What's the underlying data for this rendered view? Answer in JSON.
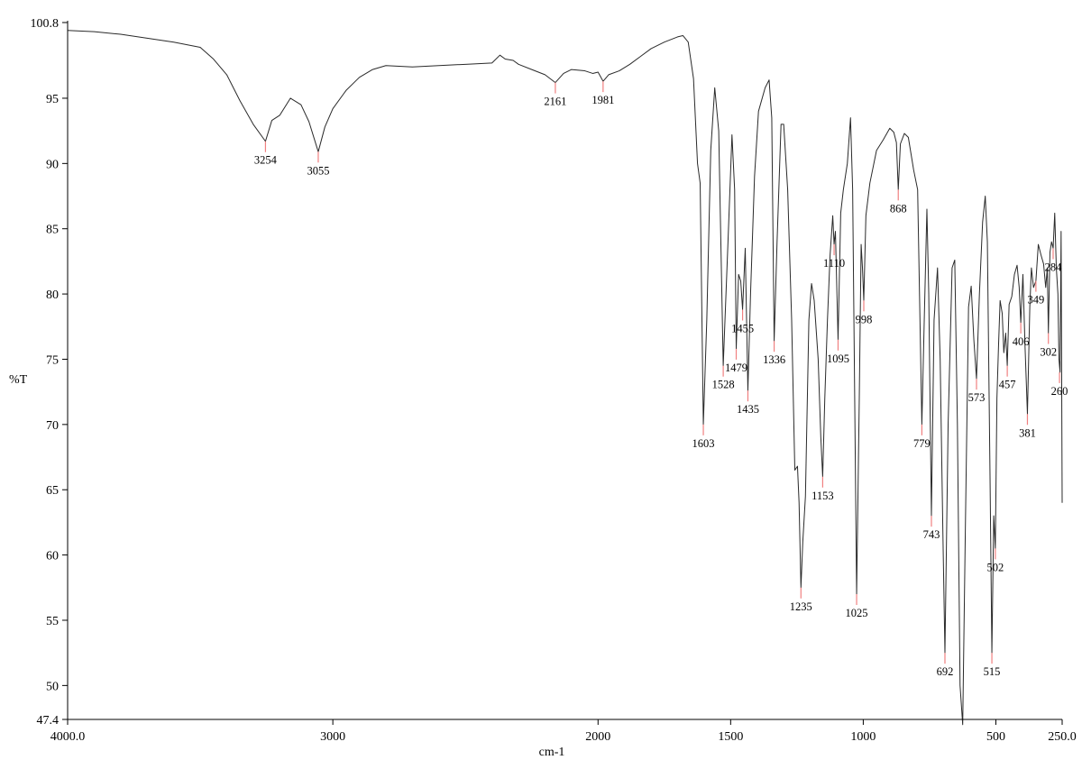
{
  "chart_data": {
    "type": "line",
    "title": "",
    "xlabel": "cm-1",
    "ylabel": "%T",
    "xlim": [
      4000.0,
      250.0
    ],
    "ylim": [
      47.4,
      100.8
    ],
    "x_reversed": true,
    "grid": false,
    "x_ticks": [
      {
        "value": 4000,
        "label": "4000.0"
      },
      {
        "value": 3000,
        "label": "3000"
      },
      {
        "value": 2000,
        "label": "2000"
      },
      {
        "value": 1500,
        "label": "1500"
      },
      {
        "value": 1000,
        "label": "1000"
      },
      {
        "value": 500,
        "label": "500"
      },
      {
        "value": 250,
        "label": "250.0"
      }
    ],
    "y_ticks": [
      {
        "value": 100.8,
        "label": "100.8"
      },
      {
        "value": 95,
        "label": "95"
      },
      {
        "value": 90,
        "label": "90"
      },
      {
        "value": 85,
        "label": "85"
      },
      {
        "value": 80,
        "label": "80"
      },
      {
        "value": 75,
        "label": "75"
      },
      {
        "value": 70,
        "label": "70"
      },
      {
        "value": 65,
        "label": "65"
      },
      {
        "value": 60,
        "label": "60"
      },
      {
        "value": 55,
        "label": "55"
      },
      {
        "value": 50,
        "label": "50"
      },
      {
        "value": 47.4,
        "label": "47.4"
      }
    ],
    "series": [
      {
        "color": "#2a2a2a",
        "points": [
          [
            4000,
            100.2
          ],
          [
            3900,
            100.1
          ],
          [
            3800,
            99.9
          ],
          [
            3700,
            99.6
          ],
          [
            3600,
            99.3
          ],
          [
            3500,
            98.9
          ],
          [
            3450,
            98.0
          ],
          [
            3400,
            96.8
          ],
          [
            3350,
            94.8
          ],
          [
            3300,
            93.0
          ],
          [
            3254,
            91.7
          ],
          [
            3230,
            93.3
          ],
          [
            3200,
            93.7
          ],
          [
            3160,
            95.0
          ],
          [
            3120,
            94.5
          ],
          [
            3090,
            93.2
          ],
          [
            3055,
            90.9
          ],
          [
            3030,
            92.8
          ],
          [
            3000,
            94.2
          ],
          [
            2950,
            95.6
          ],
          [
            2900,
            96.6
          ],
          [
            2850,
            97.2
          ],
          [
            2800,
            97.5
          ],
          [
            2700,
            97.4
          ],
          [
            2600,
            97.5
          ],
          [
            2500,
            97.6
          ],
          [
            2400,
            97.7
          ],
          [
            2370,
            98.3
          ],
          [
            2350,
            98.0
          ],
          [
            2320,
            97.9
          ],
          [
            2300,
            97.6
          ],
          [
            2250,
            97.2
          ],
          [
            2200,
            96.8
          ],
          [
            2161,
            96.2
          ],
          [
            2130,
            96.9
          ],
          [
            2100,
            97.2
          ],
          [
            2050,
            97.1
          ],
          [
            2020,
            96.9
          ],
          [
            2000,
            97.0
          ],
          [
            1981,
            96.3
          ],
          [
            1960,
            96.8
          ],
          [
            1920,
            97.1
          ],
          [
            1880,
            97.6
          ],
          [
            1840,
            98.2
          ],
          [
            1800,
            98.8
          ],
          [
            1750,
            99.3
          ],
          [
            1700,
            99.7
          ],
          [
            1680,
            99.8
          ],
          [
            1660,
            99.3
          ],
          [
            1640,
            96.5
          ],
          [
            1625,
            90.0
          ],
          [
            1615,
            88.5
          ],
          [
            1603,
            70.0
          ],
          [
            1590,
            78.0
          ],
          [
            1575,
            91.0
          ],
          [
            1560,
            95.8
          ],
          [
            1545,
            92.5
          ],
          [
            1528,
            74.5
          ],
          [
            1510,
            84.0
          ],
          [
            1495,
            92.2
          ],
          [
            1485,
            88.0
          ],
          [
            1479,
            75.8
          ],
          [
            1470,
            81.5
          ],
          [
            1462,
            81.0
          ],
          [
            1455,
            78.8
          ],
          [
            1445,
            83.5
          ],
          [
            1435,
            72.6
          ],
          [
            1425,
            80.0
          ],
          [
            1410,
            89.0
          ],
          [
            1395,
            94.0
          ],
          [
            1370,
            95.8
          ],
          [
            1355,
            96.4
          ],
          [
            1345,
            93.5
          ],
          [
            1336,
            76.4
          ],
          [
            1325,
            84.0
          ],
          [
            1310,
            93.0
          ],
          [
            1300,
            93.0
          ],
          [
            1285,
            88.0
          ],
          [
            1270,
            78.0
          ],
          [
            1258,
            66.5
          ],
          [
            1248,
            66.8
          ],
          [
            1242,
            64.0
          ],
          [
            1235,
            57.5
          ],
          [
            1228,
            61.0
          ],
          [
            1218,
            64.5
          ],
          [
            1205,
            78.0
          ],
          [
            1195,
            80.8
          ],
          [
            1185,
            79.5
          ],
          [
            1170,
            75.0
          ],
          [
            1160,
            69.0
          ],
          [
            1153,
            66.0
          ],
          [
            1145,
            72.0
          ],
          [
            1135,
            78.0
          ],
          [
            1125,
            83.0
          ],
          [
            1115,
            86.0
          ],
          [
            1110,
            83.8
          ],
          [
            1105,
            84.8
          ],
          [
            1095,
            76.5
          ],
          [
            1085,
            86.2
          ],
          [
            1075,
            88.0
          ],
          [
            1060,
            90.0
          ],
          [
            1048,
            93.5
          ],
          [
            1040,
            88.0
          ],
          [
            1025,
            57.0
          ],
          [
            1015,
            72.0
          ],
          [
            1008,
            83.8
          ],
          [
            1003,
            82.0
          ],
          [
            998,
            79.5
          ],
          [
            990,
            86.0
          ],
          [
            975,
            88.5
          ],
          [
            950,
            91.0
          ],
          [
            925,
            91.8
          ],
          [
            900,
            92.7
          ],
          [
            885,
            92.4
          ],
          [
            875,
            91.6
          ],
          [
            868,
            88.0
          ],
          [
            860,
            91.5
          ],
          [
            845,
            92.3
          ],
          [
            830,
            92.0
          ],
          [
            810,
            89.5
          ],
          [
            795,
            88.0
          ],
          [
            779,
            70.0
          ],
          [
            770,
            78.0
          ],
          [
            760,
            86.5
          ],
          [
            753,
            80.0
          ],
          [
            743,
            63.0
          ],
          [
            733,
            78.0
          ],
          [
            720,
            82.0
          ],
          [
            710,
            75.0
          ],
          [
            700,
            62.0
          ],
          [
            692,
            52.5
          ],
          [
            680,
            70.0
          ],
          [
            665,
            82.0
          ],
          [
            655,
            82.6
          ],
          [
            645,
            70.0
          ],
          [
            635,
            50.0
          ],
          [
            625,
            47.0
          ],
          [
            615,
            62.0
          ],
          [
            603,
            79.0
          ],
          [
            593,
            80.6
          ],
          [
            583,
            76.5
          ],
          [
            573,
            73.5
          ],
          [
            562,
            80.0
          ],
          [
            550,
            85.5
          ],
          [
            540,
            87.5
          ],
          [
            532,
            84.0
          ],
          [
            522,
            66.0
          ],
          [
            515,
            52.5
          ],
          [
            508,
            63.0
          ],
          [
            502,
            60.5
          ],
          [
            496,
            72.0
          ],
          [
            490,
            76.0
          ],
          [
            484,
            79.5
          ],
          [
            476,
            78.5
          ],
          [
            470,
            75.5
          ],
          [
            463,
            77.0
          ],
          [
            457,
            74.5
          ],
          [
            450,
            79.2
          ],
          [
            440,
            79.8
          ],
          [
            430,
            81.5
          ],
          [
            420,
            82.2
          ],
          [
            412,
            80.5
          ],
          [
            406,
            77.8
          ],
          [
            398,
            81.5
          ],
          [
            390,
            76.0
          ],
          [
            381,
            70.8
          ],
          [
            372,
            79.0
          ],
          [
            366,
            82.0
          ],
          [
            358,
            80.5
          ],
          [
            349,
            81.0
          ],
          [
            340,
            83.8
          ],
          [
            330,
            83.0
          ],
          [
            320,
            82.3
          ],
          [
            312,
            80.5
          ],
          [
            306,
            82.0
          ],
          [
            302,
            77.0
          ],
          [
            296,
            83.2
          ],
          [
            290,
            84.0
          ],
          [
            284,
            83.5
          ],
          [
            278,
            86.2
          ],
          [
            272,
            82.0
          ],
          [
            266,
            80.0
          ],
          [
            262,
            75.0
          ],
          [
            258,
            74.0
          ],
          [
            254,
            84.8
          ],
          [
            250,
            64.0
          ]
        ]
      }
    ],
    "peaks": [
      {
        "x": 3254,
        "y": 91.7,
        "label": "3254"
      },
      {
        "x": 3055,
        "y": 90.9,
        "label": "3055"
      },
      {
        "x": 2161,
        "y": 96.2,
        "label": "2161"
      },
      {
        "x": 1981,
        "y": 96.3,
        "label": "1981"
      },
      {
        "x": 1603,
        "y": 70.0,
        "label": "1603"
      },
      {
        "x": 1528,
        "y": 74.5,
        "label": "1528"
      },
      {
        "x": 1479,
        "y": 75.8,
        "label": "1479"
      },
      {
        "x": 1455,
        "y": 78.8,
        "label": "1455"
      },
      {
        "x": 1435,
        "y": 72.6,
        "label": "1435"
      },
      {
        "x": 1336,
        "y": 76.4,
        "label": "1336"
      },
      {
        "x": 1235,
        "y": 57.5,
        "label": "1235"
      },
      {
        "x": 1153,
        "y": 66.0,
        "label": "1153"
      },
      {
        "x": 1110,
        "y": 83.8,
        "label": "1110"
      },
      {
        "x": 1095,
        "y": 76.5,
        "label": "1095"
      },
      {
        "x": 1025,
        "y": 57.0,
        "label": "1025"
      },
      {
        "x": 998,
        "y": 79.5,
        "label": "998"
      },
      {
        "x": 868,
        "y": 88.0,
        "label": "868"
      },
      {
        "x": 779,
        "y": 70.0,
        "label": "779"
      },
      {
        "x": 743,
        "y": 63.0,
        "label": "743"
      },
      {
        "x": 692,
        "y": 52.5,
        "label": "692"
      },
      {
        "x": 573,
        "y": 73.5,
        "label": "573"
      },
      {
        "x": 515,
        "y": 52.5,
        "label": "515"
      },
      {
        "x": 502,
        "y": 60.5,
        "label": "502"
      },
      {
        "x": 457,
        "y": 74.5,
        "label": "457"
      },
      {
        "x": 406,
        "y": 77.8,
        "label": "406"
      },
      {
        "x": 381,
        "y": 70.8,
        "label": "381"
      },
      {
        "x": 349,
        "y": 81.0,
        "label": "349"
      },
      {
        "x": 302,
        "y": 77.0,
        "label": "302"
      },
      {
        "x": 284,
        "y": 83.5,
        "label": "284"
      },
      {
        "x": 260,
        "y": 74.0,
        "label": "260"
      }
    ],
    "colors": {
      "spectrum": "#2a2a2a",
      "peak_marker": "#f08080",
      "axis": "#000000"
    }
  }
}
